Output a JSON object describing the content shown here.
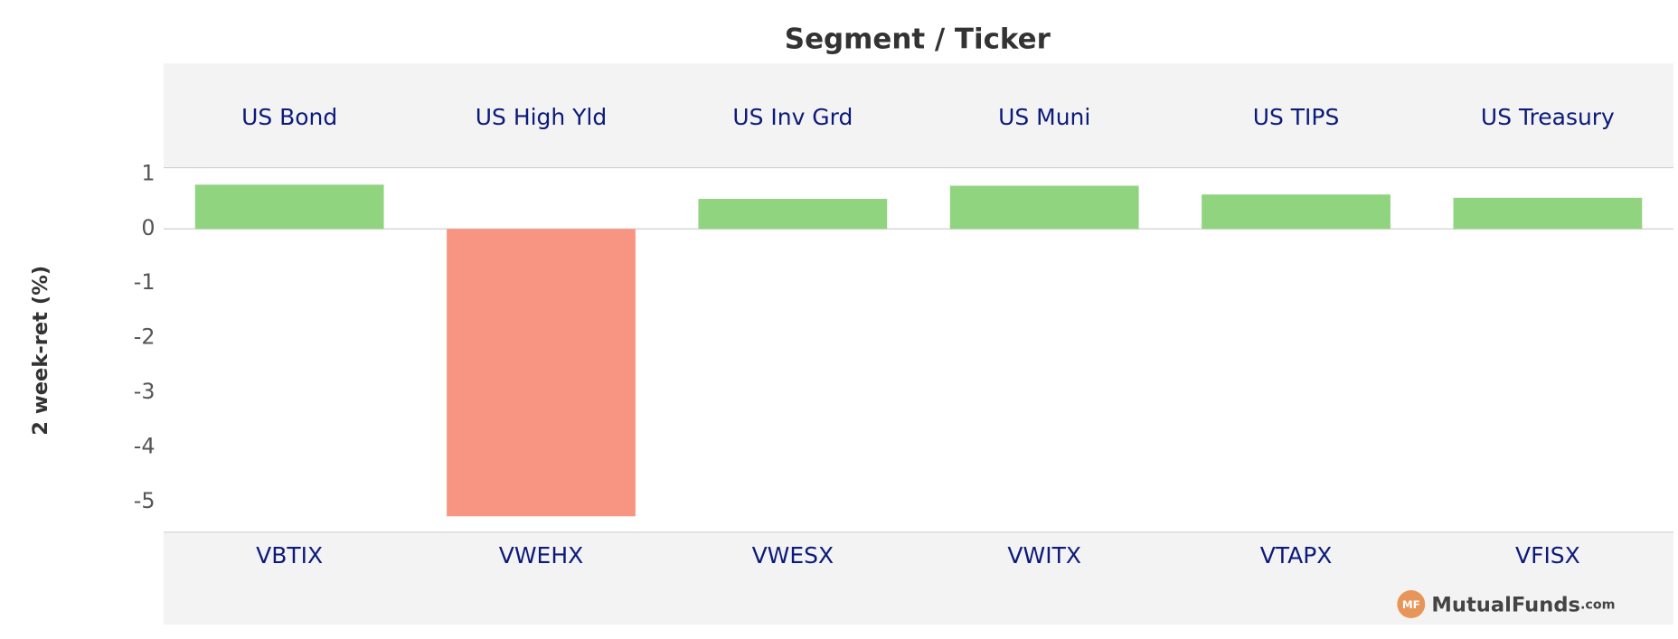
{
  "chart_data": {
    "type": "bar",
    "title": "Segment / Ticker",
    "y_label": "2 week-ret (%)",
    "segments": [
      "US Bond",
      "US High Yld",
      "US Inv Grd",
      "US Muni",
      "US TIPS",
      "US Treasury"
    ],
    "categories": [
      "VBTIX",
      "VWEHX",
      "VWESX",
      "VWITX",
      "VTAPX",
      "VFISX"
    ],
    "values": [
      0.81,
      -5.26,
      0.55,
      0.79,
      0.63,
      0.57
    ],
    "positive_color": "#90d47f",
    "negative_color": "#f89582",
    "ylim": [
      -5.55,
      1.12
    ],
    "yticks": [
      1,
      0,
      -1,
      -2,
      -3,
      -4,
      -5
    ],
    "logo_badge": "MF",
    "logo_name": "MutualFunds",
    "logo_suffix": ".com"
  }
}
